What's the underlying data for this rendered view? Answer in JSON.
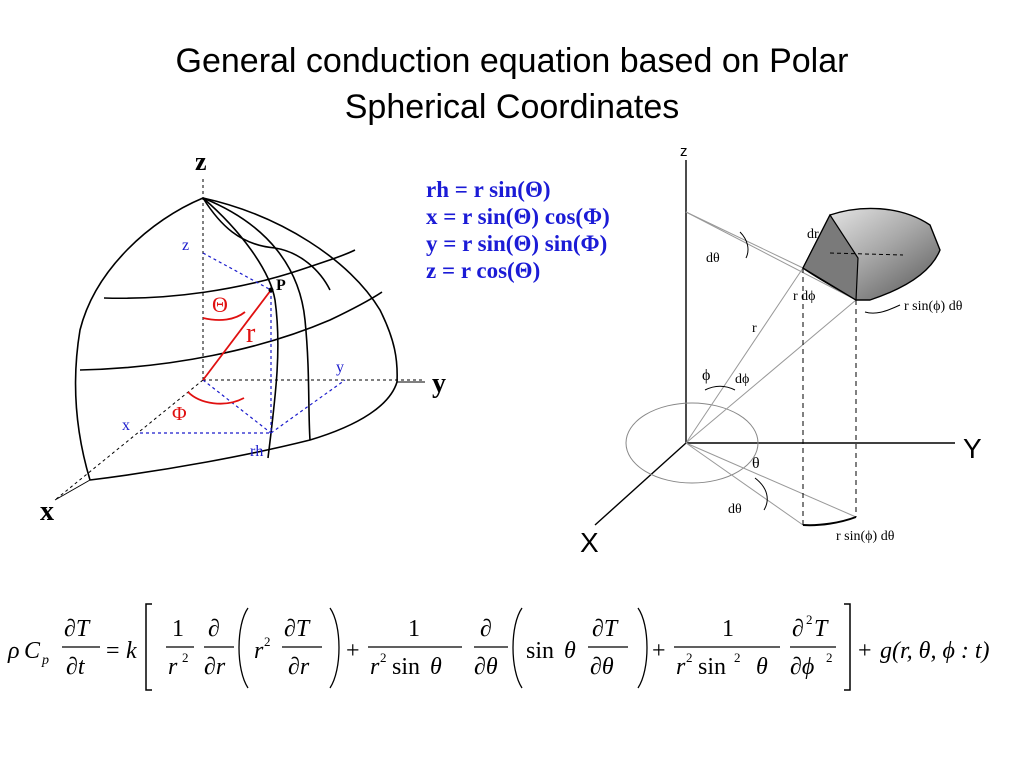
{
  "slide": {
    "title_line1": "General conduction equation based on Polar",
    "title_line2": "Spherical Coordinates"
  },
  "sphere_diagram": {
    "axis_z": "z",
    "axis_y": "y",
    "axis_x": "x",
    "point_label": "P",
    "theta_label": "Θ",
    "r_label": "r",
    "phi_label": "Φ",
    "z_proj": "z",
    "y_proj": "y",
    "x_proj": "x",
    "rh_proj": "rh"
  },
  "relations": [
    "rh = r sin(Θ)",
    "x = r sin(Θ) cos(Φ)",
    "y = r sin(Θ) sin(Φ)",
    "z = r cos(Θ)"
  ],
  "element_diagram": {
    "axis_z": "z",
    "axis_Y": "Y",
    "axis_X": "X",
    "dr": "dr",
    "dtheta_top": "dθ",
    "r_dphi": "r dϕ",
    "r_sinphi_dtheta_upper": "r sin(ϕ) dθ",
    "r": "r",
    "phi": "ϕ",
    "dphi": "dϕ",
    "theta": "θ",
    "dtheta_bottom": "dθ",
    "r_sinphi_dtheta_lower": "r sin(ϕ) dθ"
  },
  "equation": {
    "lhs_rho": "ρ",
    "lhs_C": "C",
    "lhs_p": "p",
    "equals": "=",
    "k": "k",
    "term1_num": "1",
    "term1_den": "r",
    "r2_sup": "2",
    "g_term": "g(r, θ, ϕ : t)"
  },
  "colors": {
    "relations": "#1b1bd6",
    "sphere_red": "#e01010",
    "sphere_blue": "#1a1acc"
  }
}
